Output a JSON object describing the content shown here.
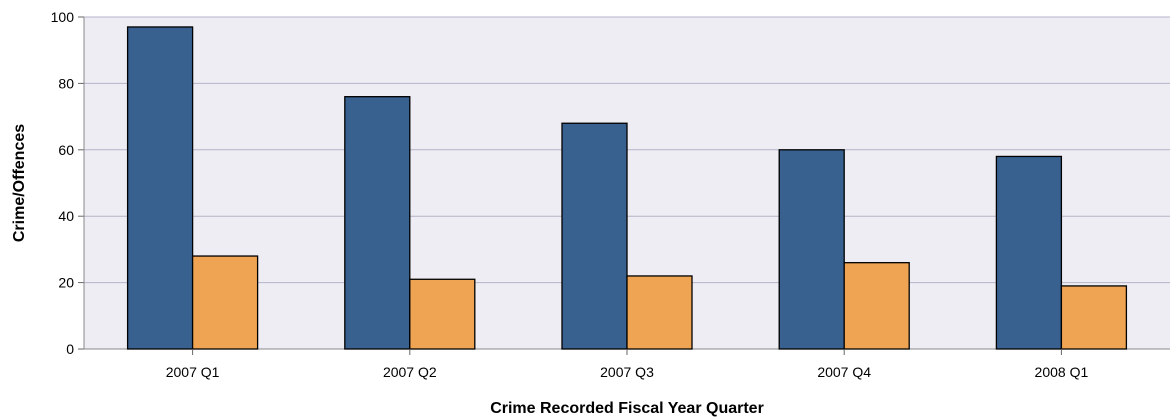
{
  "chart_data": {
    "type": "bar",
    "title": "",
    "xlabel": "Crime Recorded Fiscal Year Quarter",
    "ylabel": "Crime/Offences",
    "categories": [
      "2007 Q1",
      "2007 Q2",
      "2007 Q3",
      "2007 Q4",
      "2008 Q1"
    ],
    "series": [
      {
        "values": [
          97,
          76,
          68,
          60,
          58
        ],
        "color": "#386190"
      },
      {
        "values": [
          28,
          21,
          22,
          26,
          19
        ],
        "color": "#EFA453"
      }
    ],
    "ylim": [
      0,
      100
    ],
    "yticks": [
      0,
      20,
      40,
      60,
      80,
      100
    ],
    "ytick_labels": [
      "0",
      "20",
      "40",
      "60",
      "80",
      "100"
    ],
    "grid": true,
    "legend": "none",
    "plot_background": "#EEEDF3",
    "grid_color": "#B4B3C8"
  }
}
